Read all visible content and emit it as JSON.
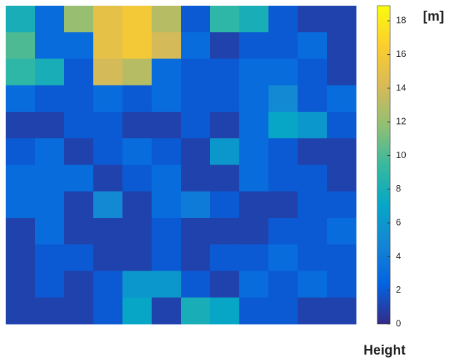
{
  "chart_data": {
    "type": "heatmap",
    "colorbar_label": "[m]",
    "xlabel": "Height",
    "clim": [
      0,
      18.9
    ],
    "cticks": [
      0,
      2,
      4,
      6,
      8,
      10,
      12,
      14,
      16,
      18
    ],
    "colormap": [
      "#352a87",
      "#0363e1",
      "#1485d4",
      "#06a7c6",
      "#38b99e",
      "#92bf73",
      "#d9ba56",
      "#fcce2e",
      "#f9fb0e"
    ],
    "z": [
      [
        8,
        3,
        12,
        15,
        16,
        13,
        2,
        9,
        8,
        2,
        1,
        1
      ],
      [
        10,
        3,
        3,
        15,
        16,
        14,
        3,
        1,
        2,
        2,
        3,
        1
      ],
      [
        9,
        8,
        2,
        14,
        13,
        3,
        2,
        2,
        3,
        3,
        2,
        1
      ],
      [
        3,
        2,
        2,
        3,
        2,
        3,
        2,
        2,
        3,
        5,
        2,
        3
      ],
      [
        1,
        1,
        2,
        2,
        1,
        1,
        2,
        1,
        3,
        7,
        6,
        2
      ],
      [
        2,
        3,
        1,
        2,
        3,
        2,
        1,
        6,
        3,
        2,
        1,
        1
      ],
      [
        3,
        3,
        3,
        1,
        2,
        3,
        1,
        1,
        3,
        2,
        2,
        1
      ],
      [
        3,
        3,
        1,
        5,
        1,
        3,
        4,
        2,
        1,
        1,
        2,
        2
      ],
      [
        1,
        3,
        1,
        1,
        1,
        2,
        1,
        1,
        1,
        2,
        2,
        3
      ],
      [
        1,
        2,
        2,
        1,
        1,
        2,
        1,
        2,
        2,
        3,
        2,
        2
      ],
      [
        1,
        2,
        1,
        2,
        6,
        6,
        2,
        1,
        3,
        2,
        3,
        2
      ],
      [
        1,
        1,
        1,
        2,
        7,
        1,
        8,
        7,
        2,
        2,
        1,
        1
      ]
    ]
  }
}
